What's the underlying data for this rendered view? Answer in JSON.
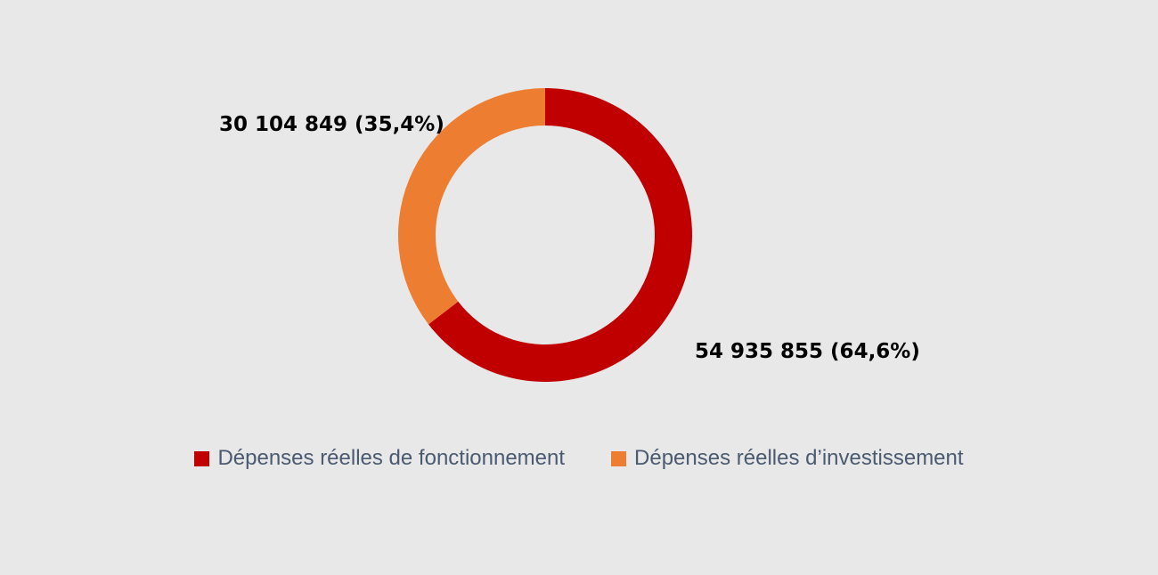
{
  "chart_data": {
    "type": "pie",
    "variant": "donut",
    "series": [
      {
        "name": "Dépenses réelles de fonctionnement",
        "value": 54935855,
        "percent": 64.6,
        "label": "54 935 855 (64,6%)",
        "color": "#c00000"
      },
      {
        "name": "Dépenses réelles d’investissement",
        "value": 30104849,
        "percent": 35.4,
        "label": "30 104 849 (35,4%)",
        "color": "#ed7d31"
      }
    ],
    "legend_position": "bottom"
  }
}
